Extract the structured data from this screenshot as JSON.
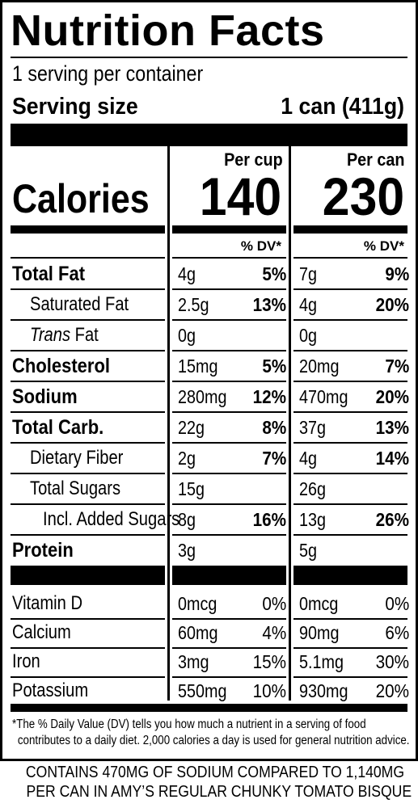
{
  "label": {
    "title": "Nutrition Facts",
    "servings_per_container": "1 serving per container",
    "serving_size_label": "Serving size",
    "serving_size_value": "1 can (411g)",
    "col1_header": "Per cup",
    "col2_header": "Per can",
    "calories_label": "Calories",
    "calories_col1": "140",
    "calories_col2": "230",
    "dv_header": "% DV*"
  },
  "nutrients": [
    {
      "name": "Total Fat",
      "bold": true,
      "indent": 0,
      "a1": "4g",
      "p1": "5%",
      "a2": "7g",
      "p2": "9%"
    },
    {
      "name": "Saturated Fat",
      "bold": false,
      "indent": 1,
      "a1": "2.5g",
      "p1": "13%",
      "a2": "4g",
      "p2": "20%"
    },
    {
      "name_italic": "Trans",
      "name": " Fat",
      "bold": false,
      "indent": 1,
      "a1": "0g",
      "p1": "",
      "a2": "0g",
      "p2": ""
    },
    {
      "name": "Cholesterol",
      "bold": true,
      "indent": 0,
      "a1": "15mg",
      "p1": "5%",
      "a2": "20mg",
      "p2": "7%"
    },
    {
      "name": "Sodium",
      "bold": true,
      "indent": 0,
      "a1": "280mg",
      "p1": "12%",
      "a2": "470mg",
      "p2": "20%"
    },
    {
      "name": "Total Carb.",
      "bold": true,
      "indent": 0,
      "a1": "22g",
      "p1": "8%",
      "a2": "37g",
      "p2": "13%"
    },
    {
      "name": "Dietary Fiber",
      "bold": false,
      "indent": 1,
      "a1": "2g",
      "p1": "7%",
      "a2": "4g",
      "p2": "14%"
    },
    {
      "name": "Total Sugars",
      "bold": false,
      "indent": 1,
      "a1": "15g",
      "p1": "",
      "a2": "26g",
      "p2": ""
    },
    {
      "name": "Incl. Added Sugars",
      "bold": false,
      "indent": 2,
      "a1": "8g",
      "p1": "16%",
      "a2": "13g",
      "p2": "26%"
    },
    {
      "name": "Protein",
      "bold": true,
      "indent": 0,
      "a1": "3g",
      "p1": "",
      "a2": "5g",
      "p2": ""
    }
  ],
  "vitamins": [
    {
      "name": "Vitamin D",
      "a1": "0mcg",
      "p1": "0%",
      "a2": "0mcg",
      "p2": "0%"
    },
    {
      "name": "Calcium",
      "a1": "60mg",
      "p1": "4%",
      "a2": "90mg",
      "p2": "6%"
    },
    {
      "name": "Iron",
      "a1": "3mg",
      "p1": "15%",
      "a2": "5.1mg",
      "p2": "30%"
    },
    {
      "name": "Potassium",
      "a1": "550mg",
      "p1": "10%",
      "a2": "930mg",
      "p2": "20%"
    }
  ],
  "footnote": {
    "line1": "*The % Daily Value (DV) tells you how much a nutrient in a serving of food",
    "line2": "contributes to a daily diet. 2,000 calories a day is used for general nutrition advice."
  },
  "claim": {
    "line1": "CONTAINS 470MG OF SODIUM COMPARED TO 1,140MG",
    "line2": "PER CAN IN AMY’S REGULAR CHUNKY TOMATO BISQUE"
  }
}
